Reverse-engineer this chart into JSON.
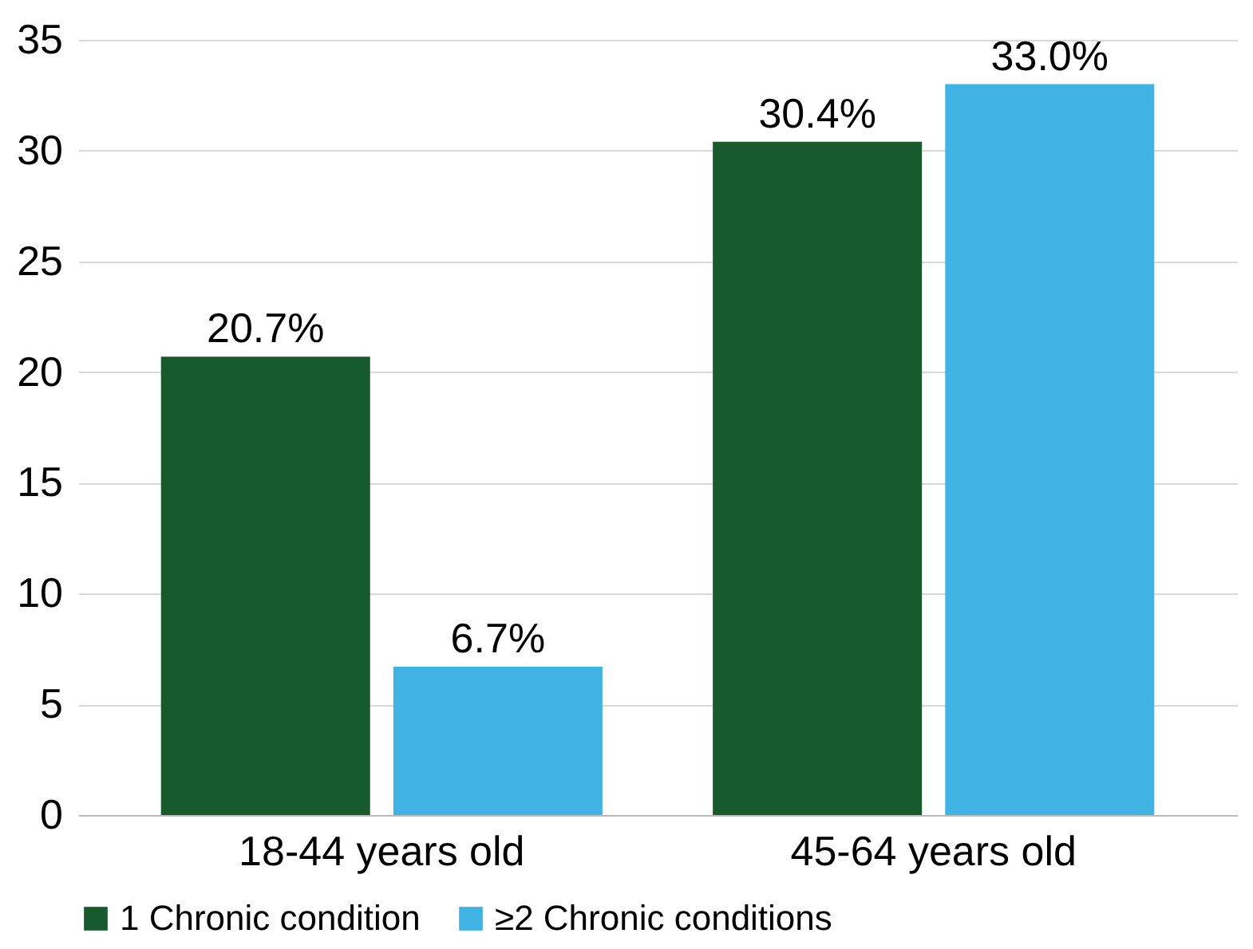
{
  "chart_data": {
    "type": "bar",
    "categories": [
      "18-44 years old",
      "45-64 years old"
    ],
    "series": [
      {
        "name": "1 Chronic condition",
        "color": "#175a2e",
        "values": [
          20.7,
          30.4
        ],
        "value_labels": [
          "20.7%",
          "30.4%"
        ]
      },
      {
        "name": "≥2 Chronic conditions",
        "color": "#41b3e3",
        "values": [
          6.7,
          33.0
        ],
        "value_labels": [
          "6.7%",
          "33.0%"
        ]
      }
    ],
    "ylim": [
      0,
      35
    ],
    "yticks": [
      0,
      5,
      10,
      15,
      20,
      25,
      30,
      35
    ],
    "grid": "y",
    "legend": "bottom"
  }
}
